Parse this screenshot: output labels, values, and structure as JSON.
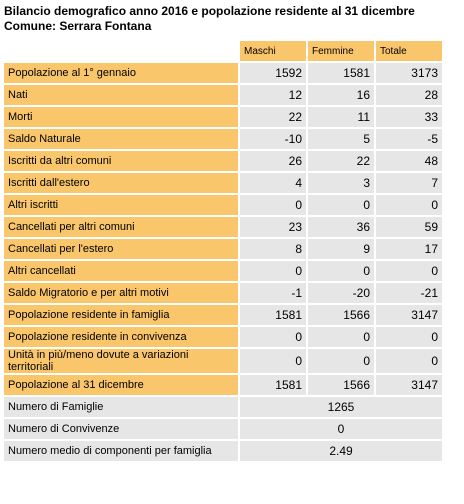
{
  "header": {
    "title": "Bilancio demografico anno 2016 e popolazione residente al 31 dicembre",
    "subtitle": "Comune: Serrara Fontana"
  },
  "table": {
    "columns": [
      "Maschi",
      "Femmine",
      "Totale"
    ],
    "rows": [
      {
        "label": "Popolazione al 1° gennaio",
        "values": [
          1592,
          1581,
          3173
        ]
      },
      {
        "label": "Nati",
        "values": [
          12,
          16,
          28
        ]
      },
      {
        "label": "Morti",
        "values": [
          22,
          11,
          33
        ]
      },
      {
        "label": "Saldo Naturale",
        "values": [
          -10,
          5,
          -5
        ]
      },
      {
        "label": "Iscritti da altri comuni",
        "values": [
          26,
          22,
          48
        ]
      },
      {
        "label": "Iscritti dall'estero",
        "values": [
          4,
          3,
          7
        ]
      },
      {
        "label": "Altri iscritti",
        "values": [
          0,
          0,
          0
        ]
      },
      {
        "label": "Cancellati per altri comuni",
        "values": [
          23,
          36,
          59
        ]
      },
      {
        "label": "Cancellati per l'estero",
        "values": [
          8,
          9,
          17
        ]
      },
      {
        "label": "Altri cancellati",
        "values": [
          0,
          0,
          0
        ]
      },
      {
        "label": "Saldo Migratorio e per altri motivi",
        "values": [
          -1,
          -20,
          -21
        ]
      },
      {
        "label": "Popolazione residente in famiglia",
        "values": [
          1581,
          1566,
          3147
        ]
      },
      {
        "label": "Popolazione residente in convivenza",
        "values": [
          0,
          0,
          0
        ]
      },
      {
        "label": "Unità in più/meno dovute a variazioni territoriali",
        "values": [
          0,
          0,
          0
        ]
      },
      {
        "label": "Popolazione al 31 dicembre",
        "values": [
          1581,
          1566,
          3147
        ]
      }
    ],
    "summary": [
      {
        "label": "Numero di Famiglie",
        "value": 1265
      },
      {
        "label": "Numero di Convivenze",
        "value": 0
      },
      {
        "label": "Numero medio di componenti per famiglia",
        "value": 2.49
      }
    ]
  }
}
